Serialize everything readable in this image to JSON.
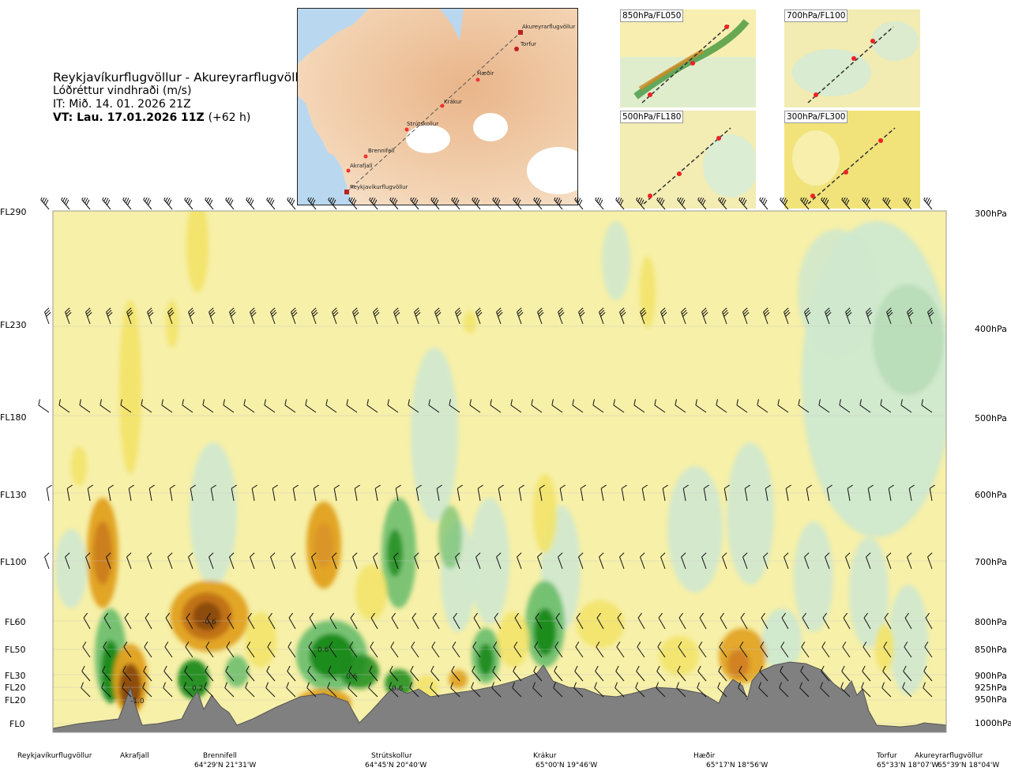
{
  "title": {
    "route": "Reykjavíkurflugvöllur - Akureyrarflugvöllur",
    "variable": "Lóðréttur vindhraði (m/s)",
    "issue": "IT: Mið. 14. 01. 2026 21Z",
    "valid": "VT: Lau. 17.01.2026 11Z",
    "lead": "(+62 h)"
  },
  "route_map": {
    "points": [
      {
        "name": "Akureyrarflugvöllur"
      },
      {
        "name": "Torfur"
      },
      {
        "name": "Hæðir"
      },
      {
        "name": "Krákur"
      },
      {
        "name": "Strútskollur"
      },
      {
        "name": "Brennifell"
      },
      {
        "name": "Akrafjall"
      },
      {
        "name": "Reykjavíkurflugvöllur"
      }
    ]
  },
  "mini_maps": [
    {
      "label": "850hPa/FL050"
    },
    {
      "label": "700hPa/FL100"
    },
    {
      "label": "500hPa/FL180"
    },
    {
      "label": "300hPa/FL300"
    }
  ],
  "chart_data": {
    "type": "heatmap",
    "title": "Lóðréttur vindhraði (m/s)",
    "levels": [
      {
        "fl": "FL290",
        "hpa": "300hPa"
      },
      {
        "fl": "FL230",
        "hpa": "400hPa"
      },
      {
        "fl": "FL180",
        "hpa": "500hPa"
      },
      {
        "fl": "FL130",
        "hpa": "600hPa"
      },
      {
        "fl": "FL100",
        "hpa": "700hPa"
      },
      {
        "fl": "FL60",
        "hpa": "800hPa"
      },
      {
        "fl": "FL50",
        "hpa": "850hPa"
      },
      {
        "fl": "FL30",
        "hpa": "900hPa"
      },
      {
        "fl": "FL20",
        "hpa": "925hPa"
      },
      {
        "fl": "FL20",
        "hpa": "950hPa"
      },
      {
        "fl": "FL0",
        "hpa": "1000hPa"
      }
    ],
    "locations": [
      {
        "name": "Reykjavíkurflugvöllur",
        "coord": ""
      },
      {
        "name": "Akrafjall",
        "coord": ""
      },
      {
        "name": "Brennifell",
        "coord": "64°29'N 21°31'W"
      },
      {
        "name": "Strútskollur",
        "coord": "64°45'N 20°40'W"
      },
      {
        "name": "Krákur",
        "coord": "65°00'N 19°46'W"
      },
      {
        "name": "Hæðir",
        "coord": "65°17'N 18°56'W"
      },
      {
        "name": "Torfur",
        "coord": "65°33'N 18°07'W"
      },
      {
        "name": "Akureyrarflugvöllur",
        "coord": "65°39'N 18°04'W"
      }
    ],
    "contour_labels": [
      {
        "text": "-0.6",
        "location": "Brennifell",
        "level": "800hPa"
      },
      {
        "text": "0.6",
        "location": "Strútskollur",
        "level": "850hPa"
      },
      {
        "text": "0.6",
        "location": "Strútskollur",
        "level": "900hPa"
      },
      {
        "text": "0.6",
        "location": "Strútskollur",
        "level": "925hPa"
      },
      {
        "text": "-1.0",
        "location": "Akrafjall",
        "level": "950hPa"
      },
      {
        "text": "0.2",
        "location": "Brennifell",
        "level": "925hPa"
      }
    ],
    "colors": {
      "strong_downward": "#8a4a10",
      "downward": "#e0a020",
      "weak_downward": "#f2e36a",
      "neutral": "#f7f0a8",
      "weak_upward": "#cfe8cf",
      "upward": "#6fbf6f",
      "strong_upward": "#1a8a1a",
      "terrain": "#808080"
    }
  }
}
